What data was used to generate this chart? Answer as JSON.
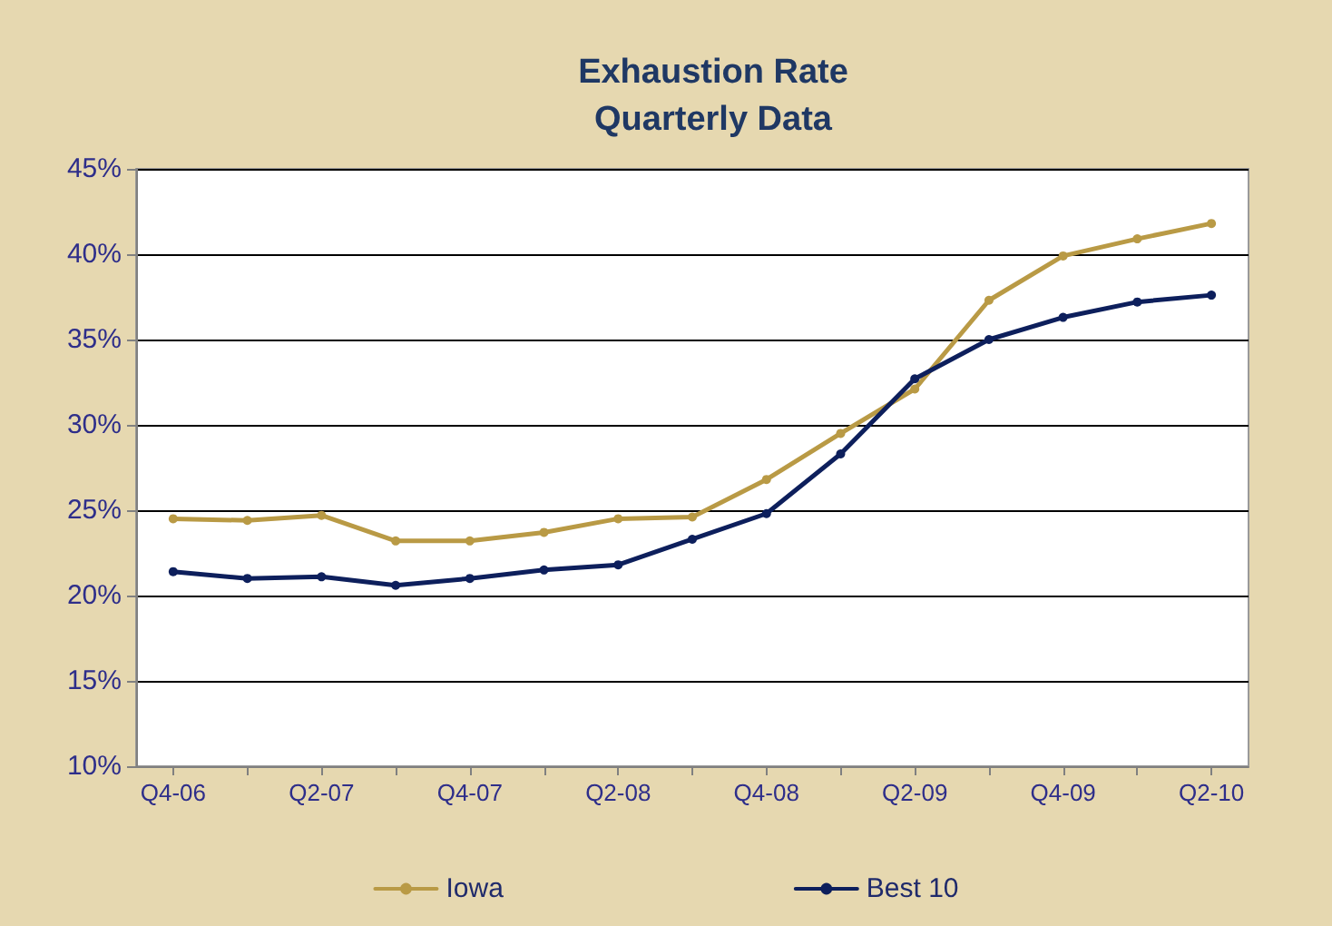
{
  "chart_data": {
    "type": "line",
    "title": "Exhaustion Rate\nQuarterly Data",
    "categories": [
      "Q4-06",
      null,
      "Q2-07",
      null,
      "Q4-07",
      null,
      "Q2-08",
      null,
      "Q4-08",
      null,
      "Q2-09",
      null,
      "Q4-09",
      null,
      "Q2-10"
    ],
    "series": [
      {
        "name": "Iowa",
        "color": "#b99a45",
        "values": [
          24.5,
          24.4,
          24.7,
          23.2,
          23.2,
          23.7,
          24.5,
          24.6,
          26.8,
          29.5,
          32.1,
          37.3,
          39.9,
          40.9,
          41.8
        ]
      },
      {
        "name": "Best 10",
        "color": "#0d1f5c",
        "values": [
          21.4,
          21.0,
          21.1,
          20.6,
          21.0,
          21.5,
          21.8,
          23.3,
          24.8,
          28.3,
          32.7,
          35.0,
          36.3,
          37.2,
          37.6
        ]
      }
    ],
    "ylim": [
      10,
      45
    ],
    "yticks": [
      {
        "value": 10,
        "label": "10%"
      },
      {
        "value": 15,
        "label": "15%"
      },
      {
        "value": 20,
        "label": "20%"
      },
      {
        "value": 25,
        "label": "25%"
      },
      {
        "value": 30,
        "label": "30%"
      },
      {
        "value": 35,
        "label": "35%"
      },
      {
        "value": 40,
        "label": "40%"
      },
      {
        "value": 45,
        "label": "45%"
      }
    ],
    "grid": "y",
    "legend": "bottom",
    "marker": "circle",
    "line_style": "solid"
  }
}
